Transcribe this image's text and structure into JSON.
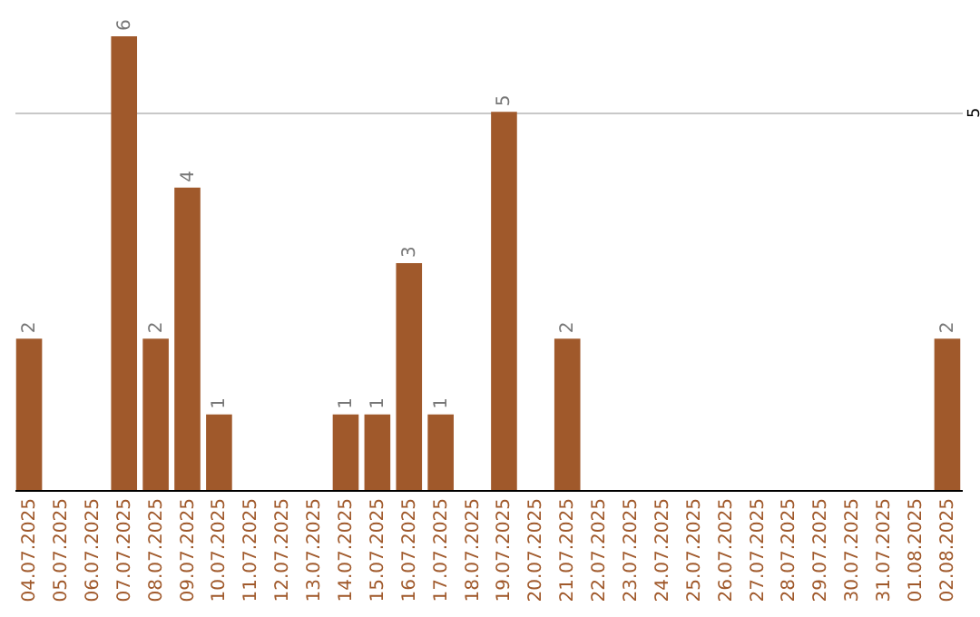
{
  "chart_data": {
    "type": "bar",
    "categories": [
      "04.07.2025",
      "05.07.2025",
      "06.07.2025",
      "07.07.2025",
      "08.07.2025",
      "09.07.2025",
      "10.07.2025",
      "11.07.2025",
      "12.07.2025",
      "13.07.2025",
      "14.07.2025",
      "15.07.2025",
      "16.07.2025",
      "17.07.2025",
      "18.07.2025",
      "19.07.2025",
      "20.07.2025",
      "21.07.2025",
      "22.07.2025",
      "23.07.2025",
      "24.07.2025",
      "25.07.2025",
      "26.07.2025",
      "27.07.2025",
      "28.07.2025",
      "29.07.2025",
      "30.07.2025",
      "31.07.2025",
      "01.08.2025",
      "02.08.2025"
    ],
    "series": [
      {
        "color": "#a0592b",
        "values": [
          2,
          0,
          0,
          6,
          2,
          4,
          1,
          0,
          0,
          0,
          1,
          1,
          3,
          1,
          0,
          5,
          0,
          2,
          0,
          0,
          0,
          0,
          0,
          0,
          0,
          0,
          0,
          0,
          0,
          2
        ],
        "value_labels": [
          "2",
          null,
          null,
          "6",
          "2",
          "4",
          "1",
          null,
          null,
          null,
          "1",
          "1",
          "3",
          "1",
          null,
          "5",
          null,
          "2",
          null,
          null,
          null,
          null,
          null,
          null,
          null,
          null,
          null,
          null,
          null,
          "2"
        ]
      }
    ],
    "ylim": [
      0,
      6
    ],
    "yticks": [
      5
    ],
    "grid": "y"
  }
}
